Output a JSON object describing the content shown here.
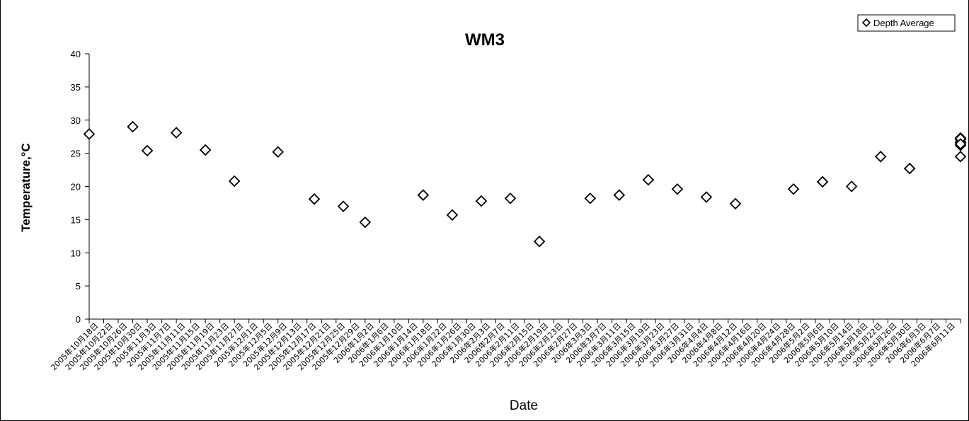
{
  "chart_data": {
    "type": "scatter",
    "title": "WM3",
    "xlabel": "Date",
    "ylabel": "Temperature,°C",
    "ylim": [
      0,
      40
    ],
    "yticks": [
      0,
      5,
      10,
      15,
      20,
      25,
      30,
      35,
      40
    ],
    "grid": false,
    "legend_position": "top-right",
    "marker_color": "#000000",
    "categories": [
      "2005年10月18日",
      "2005年10月22日",
      "2005年10月26日",
      "2005年10月30日",
      "2005年11月3日",
      "2005年11月7日",
      "2005年11月11日",
      "2005年11月15日",
      "2005年11月19日",
      "2005年11月23日",
      "2005年11月27日",
      "2005年12月1日",
      "2005年12月5日",
      "2005年12月9日",
      "2005年12月13日",
      "2005年12月17日",
      "2005年12月21日",
      "2005年12月25日",
      "2005年12月29日",
      "2006年1月2日",
      "2006年1月6日",
      "2006年1月10日",
      "2006年1月14日",
      "2006年1月18日",
      "2006年1月22日",
      "2006年1月26日",
      "2006年1月30日",
      "2006年2月3日",
      "2006年2月7日",
      "2006年2月11日",
      "2006年2月15日",
      "2006年2月19日",
      "2006年2月23日",
      "2006年2月27日",
      "2006年3月3日",
      "2006年3月7日",
      "2006年3月11日",
      "2006年3月15日",
      "2006年3月19日",
      "2006年3月23日",
      "2006年3月27日",
      "2006年3月31日",
      "2006年4月4日",
      "2006年4月8日",
      "2006年4月12日",
      "2006年4月16日",
      "2006年4月20日",
      "2006年4月24日",
      "2006年4月28日",
      "2006年5月2日",
      "2006年5月6日",
      "2006年5月10日",
      "2006年5月14日",
      "2006年5月18日",
      "2006年5月22日",
      "2006年5月26日",
      "2006年5月30日",
      "2006年6月3日",
      "2006年6月7日",
      "2006年6月11日"
    ],
    "series": [
      {
        "name": "Depth Average",
        "marker": "diamond-open",
        "points": [
          {
            "x": "2005-10-18",
            "y": 27.9
          },
          {
            "x": "2005-10-30",
            "y": 29.0
          },
          {
            "x": "2005-11-03",
            "y": 25.4
          },
          {
            "x": "2005-11-11",
            "y": 28.1
          },
          {
            "x": "2005-11-19",
            "y": 25.5
          },
          {
            "x": "2005-11-27",
            "y": 20.8
          },
          {
            "x": "2005-12-09",
            "y": 25.2
          },
          {
            "x": "2005-12-19",
            "y": 18.1
          },
          {
            "x": "2005-12-27",
            "y": 17.0
          },
          {
            "x": "2006-01-02",
            "y": 14.6
          },
          {
            "x": "2006-01-18",
            "y": 18.7
          },
          {
            "x": "2006-01-26",
            "y": 15.7
          },
          {
            "x": "2006-02-03",
            "y": 17.8
          },
          {
            "x": "2006-02-11",
            "y": 18.2
          },
          {
            "x": "2006-02-19",
            "y": 11.7
          },
          {
            "x": "2006-03-05",
            "y": 18.2
          },
          {
            "x": "2006-03-13",
            "y": 18.7
          },
          {
            "x": "2006-03-21",
            "y": 21.0
          },
          {
            "x": "2006-03-29",
            "y": 19.6
          },
          {
            "x": "2006-04-06",
            "y": 18.4
          },
          {
            "x": "2006-04-14",
            "y": 17.4
          },
          {
            "x": "2006-04-30",
            "y": 19.6
          },
          {
            "x": "2006-05-08",
            "y": 20.7
          },
          {
            "x": "2006-05-16",
            "y": 20.0
          },
          {
            "x": "2006-05-24",
            "y": 24.5
          },
          {
            "x": "2006-06-01",
            "y": 22.7
          },
          {
            "x": "2006-06-15",
            "y": 24.5
          },
          {
            "x": "2006-06-24",
            "y": 27.3
          },
          {
            "x": "2006-07-02",
            "y": 26.6
          },
          {
            "x": "2006-07-10",
            "y": 27.1
          },
          {
            "x": "2006-07-18",
            "y": 26.7
          },
          {
            "x": "2006-08-03",
            "y": 27.3
          },
          {
            "x": "2006-08-06",
            "y": 26.2
          },
          {
            "x": "2006-08-19",
            "y": 27.2
          },
          {
            "x": "2006-08-27",
            "y": 26.4
          }
        ]
      }
    ]
  }
}
